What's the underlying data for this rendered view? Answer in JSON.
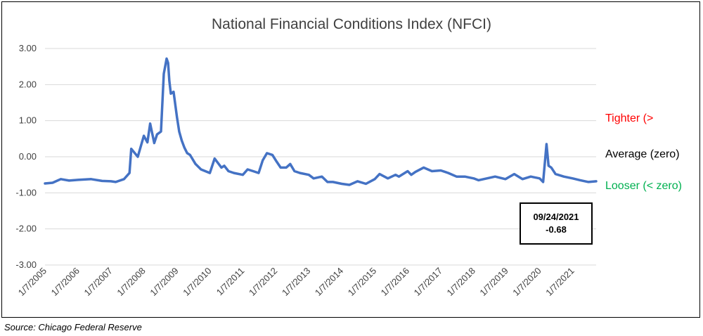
{
  "chart_data": {
    "type": "line",
    "title": "National Financial Conditions Index (NFCI)",
    "xlabel": "",
    "ylabel": "",
    "ylim": [
      -3,
      3
    ],
    "y_ticks": [
      "3.00",
      "2.00",
      "1.00",
      "0.00",
      "-1.00",
      "-2.00",
      "-3.00"
    ],
    "x_ticks": [
      "1/7/2005",
      "1/7/2006",
      "1/7/2007",
      "1/7/2008",
      "1/7/2009",
      "1/7/2010",
      "1/7/2011",
      "1/7/2012",
      "1/7/2013",
      "1/7/2014",
      "1/7/2015",
      "1/7/2016",
      "1/7/2017",
      "1/7/2018",
      "1/7/2019",
      "1/7/2020",
      "1/7/2021"
    ],
    "grid": true,
    "legend": "none",
    "series": [
      {
        "color": "#4472C4",
        "x": [
          "2005-01-07",
          "2005-04-01",
          "2005-07-01",
          "2005-10-01",
          "2006-01-07",
          "2006-06-01",
          "2006-10-01",
          "2007-01-07",
          "2007-03-01",
          "2007-06-01",
          "2007-08-01",
          "2007-08-20",
          "2007-11-01",
          "2008-01-07",
          "2008-02-15",
          "2008-03-17",
          "2008-05-01",
          "2008-06-01",
          "2008-07-15",
          "2008-08-15",
          "2008-09-15",
          "2008-10-01",
          "2008-10-15",
          "2008-11-01",
          "2008-12-01",
          "2009-01-07",
          "2009-02-01",
          "2009-03-01",
          "2009-04-01",
          "2009-05-01",
          "2009-06-01",
          "2009-08-01",
          "2009-10-01",
          "2010-01-07",
          "2010-03-01",
          "2010-05-15",
          "2010-06-15",
          "2010-08-01",
          "2010-10-01",
          "2011-01-07",
          "2011-03-01",
          "2011-05-01",
          "2011-07-01",
          "2011-08-15",
          "2011-10-01",
          "2011-12-01",
          "2012-01-07",
          "2012-03-01",
          "2012-05-01",
          "2012-06-15",
          "2012-08-01",
          "2012-10-01",
          "2013-01-07",
          "2013-03-01",
          "2013-06-01",
          "2013-08-01",
          "2013-10-01",
          "2014-01-07",
          "2014-04-01",
          "2014-07-01",
          "2014-10-01",
          "2015-01-07",
          "2015-03-01",
          "2015-06-01",
          "2015-08-25",
          "2015-10-01",
          "2016-01-07",
          "2016-02-15",
          "2016-04-01",
          "2016-07-01",
          "2016-10-01",
          "2017-01-07",
          "2017-04-01",
          "2017-07-01",
          "2017-10-01",
          "2018-01-07",
          "2018-03-01",
          "2018-06-01",
          "2018-09-01",
          "2018-12-24",
          "2019-01-07",
          "2019-04-01",
          "2019-07-01",
          "2019-10-01",
          "2020-01-07",
          "2020-02-15",
          "2020-03-23",
          "2020-04-15",
          "2020-05-15",
          "2020-07-01",
          "2020-10-01",
          "2021-01-07",
          "2021-04-01",
          "2021-07-01",
          "2021-09-24"
        ],
        "values": [
          -0.74,
          -0.72,
          -0.62,
          -0.66,
          -0.64,
          -0.62,
          -0.67,
          -0.68,
          -0.7,
          -0.62,
          -0.45,
          0.22,
          0.0,
          0.58,
          0.4,
          0.92,
          0.38,
          0.62,
          0.7,
          2.3,
          2.72,
          2.6,
          2.1,
          1.75,
          1.8,
          1.1,
          0.7,
          0.45,
          0.25,
          0.1,
          0.05,
          -0.2,
          -0.35,
          -0.45,
          -0.05,
          -0.3,
          -0.25,
          -0.4,
          -0.45,
          -0.5,
          -0.35,
          -0.4,
          -0.45,
          -0.1,
          0.1,
          0.05,
          -0.1,
          -0.3,
          -0.3,
          -0.2,
          -0.4,
          -0.45,
          -0.5,
          -0.6,
          -0.55,
          -0.7,
          -0.7,
          -0.75,
          -0.78,
          -0.68,
          -0.75,
          -0.62,
          -0.48,
          -0.6,
          -0.5,
          -0.55,
          -0.4,
          -0.5,
          -0.42,
          -0.3,
          -0.4,
          -0.38,
          -0.45,
          -0.55,
          -0.55,
          -0.6,
          -0.65,
          -0.6,
          -0.55,
          -0.62,
          -0.6,
          -0.48,
          -0.62,
          -0.55,
          -0.6,
          -0.7,
          0.35,
          -0.25,
          -0.3,
          -0.48,
          -0.55,
          -0.6,
          -0.65,
          -0.7,
          -0.68
        ]
      }
    ],
    "annotations": {
      "tighter": "Tighter (>",
      "average": "Average (zero)",
      "looser": "Looser (< zero)",
      "callout_date": "09/24/2021",
      "callout_value": "-0.68"
    },
    "colors": {
      "line": "#4472C4",
      "tighter": "#FF0000",
      "average": "#000000",
      "looser": "#00B050",
      "grid": "#D9D9D9"
    }
  },
  "source": "Source:  Chicago Federal Reserve"
}
